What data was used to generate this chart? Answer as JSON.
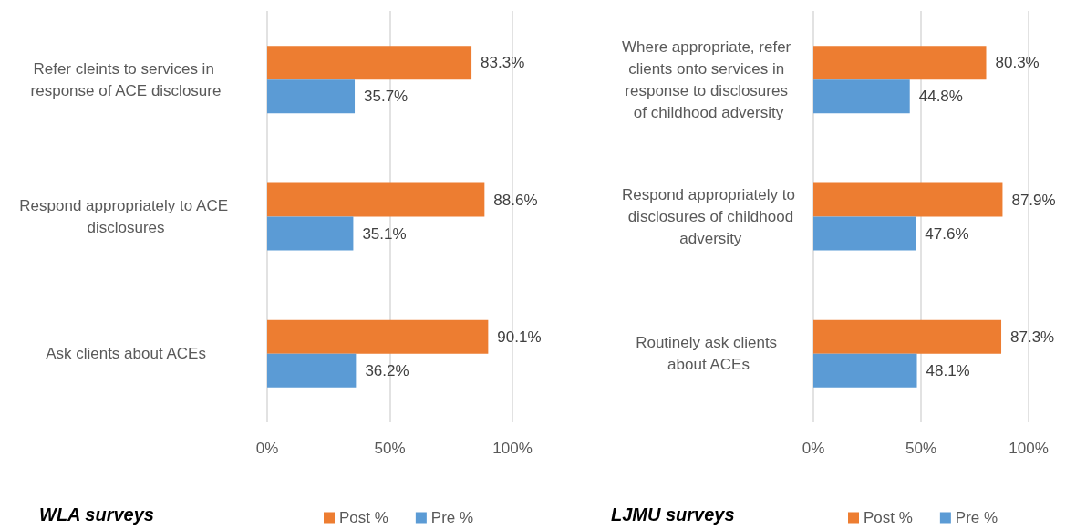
{
  "chart_data": [
    {
      "type": "bar",
      "orientation": "horizontal",
      "title": "WLA surveys",
      "categories": [
        "Refer cleints to services in response of ACE disclosure",
        "Respond appropriately to ACE disclosures",
        "Ask clients about ACEs"
      ],
      "series": [
        {
          "name": "Post %",
          "color": "#ed7d31",
          "values": [
            83.3,
            88.6,
            90.1
          ],
          "value_labels": [
            "83.3%",
            "88.6%",
            "90.1%"
          ]
        },
        {
          "name": "Pre %",
          "color": "#5b9bd5",
          "values": [
            35.7,
            35.1,
            36.2
          ],
          "value_labels": [
            "35.7%",
            "35.1%",
            "36.2%"
          ]
        }
      ],
      "xlim": [
        0,
        100
      ],
      "xticks": [
        {
          "value": 0,
          "label": "0%"
        },
        {
          "value": 50,
          "label": "50%"
        },
        {
          "value": 100,
          "label": "100%"
        }
      ],
      "grid": "x",
      "legend": "bottom"
    },
    {
      "type": "bar",
      "orientation": "horizontal",
      "title": "LJMU surveys",
      "categories": [
        "Where appropriate, refer clients onto services in response to disclosures of childhood adversity",
        "Respond appropriately to disclosures of childhood adversity",
        "Routinely ask clients about ACEs"
      ],
      "series": [
        {
          "name": "Post %",
          "color": "#ed7d31",
          "values": [
            80.3,
            87.9,
            87.3
          ],
          "value_labels": [
            "80.3%",
            "87.9%",
            "87.3%"
          ]
        },
        {
          "name": "Pre %",
          "color": "#5b9bd5",
          "values": [
            44.8,
            47.6,
            48.1
          ],
          "value_labels": [
            "44.8%",
            "47.6%",
            "48.1%"
          ]
        }
      ],
      "xlim": [
        0,
        100
      ],
      "xticks": [
        {
          "value": 0,
          "label": "0%"
        },
        {
          "value": 50,
          "label": "50%"
        },
        {
          "value": 100,
          "label": "100%"
        }
      ],
      "grid": "x",
      "legend": "bottom"
    }
  ]
}
